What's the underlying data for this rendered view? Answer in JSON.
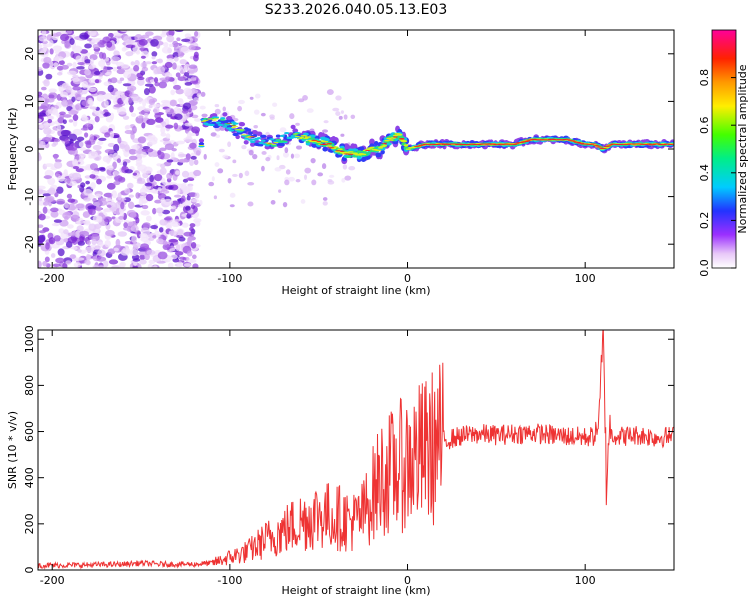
{
  "title": "S233.2026.040.05.13.E03",
  "colors": {
    "background": "#ffffff",
    "snr_line": "#ee3333",
    "axis": "#000000",
    "scatter_purple": "#8a2be2",
    "spectrum_ridge": "#dd2222"
  },
  "chart_data": [
    {
      "type": "heatmap",
      "name": "spectrogram",
      "xlabel": "Height of straight line (km)",
      "ylabel": "Frequency (Hz)",
      "xlim": [
        -208,
        150
      ],
      "ylim": [
        -25,
        25
      ],
      "xticks": [
        -200,
        -100,
        0,
        100
      ],
      "yticks": [
        -20,
        -10,
        0,
        10,
        20
      ],
      "colorbar": {
        "label": "Normalized spectral amplitude",
        "range": [
          0.0,
          1.0
        ],
        "ticks": [
          0.0,
          0.2,
          0.4,
          0.6,
          0.8
        ],
        "colormap": "rainbow (white-violet-blue-cyan-green-yellow-orange-red-magenta)"
      },
      "ridge": {
        "x": [
          -115,
          -105,
          -95,
          -85,
          -75,
          -65,
          -55,
          -45,
          -35,
          -25,
          -20,
          -15,
          -10,
          -5,
          0,
          10,
          20,
          30,
          40,
          50,
          60,
          70,
          80,
          90,
          100,
          105,
          110,
          115,
          120,
          130,
          140,
          150
        ],
        "y": [
          6,
          6,
          4,
          2,
          1,
          3,
          2,
          1,
          -1,
          -1,
          0,
          0,
          2,
          3,
          0,
          1,
          1,
          1,
          1,
          1,
          1,
          2,
          2,
          2,
          1,
          1,
          0,
          1,
          1,
          1,
          1,
          1
        ]
      }
    },
    {
      "type": "line",
      "name": "snr",
      "xlabel": "Height of straight line (km)",
      "ylabel": "SNR (10 * v/v)",
      "xlim": [
        -208,
        150
      ],
      "ylim": [
        0,
        1040
      ],
      "xticks": [
        -200,
        -100,
        0,
        100
      ],
      "yticks": [
        0,
        200,
        400,
        600,
        800,
        1000
      ],
      "series": [
        {
          "name": "SNR",
          "x": [
            -208,
            -200,
            -180,
            -160,
            -150,
            -140,
            -130,
            -120,
            -110,
            -100,
            -90,
            -80,
            -70,
            -60,
            -50,
            -40,
            -30,
            -25,
            -20,
            -15,
            -10,
            0,
            10,
            20,
            30,
            40,
            50,
            60,
            70,
            80,
            90,
            100,
            105,
            108,
            110,
            111,
            112,
            113,
            115,
            120,
            130,
            140,
            150
          ],
          "y": [
            20,
            20,
            22,
            25,
            30,
            25,
            25,
            25,
            30,
            55,
            80,
            130,
            170,
            210,
            240,
            230,
            210,
            240,
            320,
            400,
            420,
            470,
            510,
            560,
            580,
            590,
            585,
            590,
            595,
            585,
            580,
            575,
            580,
            640,
            1010,
            800,
            300,
            600,
            590,
            580,
            585,
            575,
            580
          ]
        }
      ]
    }
  ]
}
